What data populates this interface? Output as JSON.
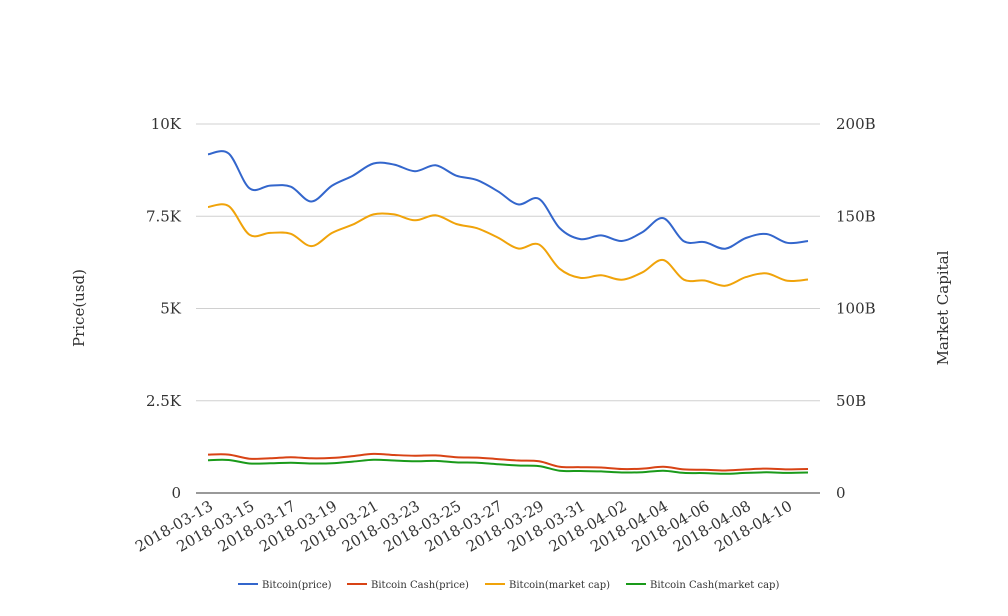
{
  "colors": {
    "btc_price": "#3366cc",
    "bch_price": "#d84315",
    "btc_cap": "#f0a30a",
    "bch_cap": "#1a9a1a",
    "grid": "#d0d0d0",
    "text": "#333333"
  },
  "chart_data": {
    "type": "line",
    "title": "",
    "left_axis": {
      "label": "Price(usd)",
      "ylim": [
        0,
        10000
      ],
      "ticks": [
        "0",
        "2.5K",
        "5K",
        "7.5K",
        "10K"
      ]
    },
    "right_axis": {
      "label": "Market Capital",
      "ylim": [
        0,
        200000000000
      ],
      "ticks": [
        "0",
        "50B",
        "100B",
        "150B",
        "200B"
      ]
    },
    "x": [
      "2018-03-13",
      "2018-03-14",
      "2018-03-15",
      "2018-03-16",
      "2018-03-17",
      "2018-03-18",
      "2018-03-19",
      "2018-03-20",
      "2018-03-21",
      "2018-03-22",
      "2018-03-23",
      "2018-03-24",
      "2018-03-25",
      "2018-03-26",
      "2018-03-27",
      "2018-03-28",
      "2018-03-29",
      "2018-03-30",
      "2018-03-31",
      "2018-04-01",
      "2018-04-02",
      "2018-04-03",
      "2018-04-04",
      "2018-04-05",
      "2018-04-06",
      "2018-04-07",
      "2018-04-08",
      "2018-04-09",
      "2018-04-10",
      "2018-04-11"
    ],
    "x_tick_labels": [
      "2018-03-13",
      "2018-03-15",
      "2018-03-17",
      "2018-03-19",
      "2018-03-21",
      "2018-03-23",
      "2018-03-25",
      "2018-03-27",
      "2018-03-29",
      "2018-03-31",
      "2018-04-02",
      "2018-04-04",
      "2018-04-06",
      "2018-04-08",
      "2018-04-10"
    ],
    "grid": true,
    "legend_position": "bottom",
    "series": [
      {
        "name": "Bitcoin(price)",
        "axis": "left",
        "color": "#3366cc",
        "values": [
          9180,
          9200,
          8260,
          8330,
          8300,
          7900,
          8330,
          8600,
          8930,
          8900,
          8720,
          8880,
          8600,
          8480,
          8180,
          7820,
          7970,
          7180,
          6880,
          6980,
          6830,
          7070,
          7450,
          6820,
          6800,
          6620,
          6910,
          7020,
          6780,
          6830
        ]
      },
      {
        "name": "Bitcoin Cash(price)",
        "axis": "left",
        "color": "#d84315",
        "values": [
          1040,
          1040,
          930,
          940,
          970,
          940,
          950,
          1000,
          1060,
          1030,
          1010,
          1020,
          970,
          960,
          920,
          880,
          860,
          710,
          700,
          690,
          650,
          660,
          710,
          640,
          630,
          610,
          640,
          660,
          640,
          650
        ]
      },
      {
        "name": "Bitcoin(market cap)",
        "axis": "right",
        "color": "#f0a30a",
        "values": [
          155000000000,
          155500000000,
          140000000000,
          141000000000,
          140500000000,
          133800000000,
          141000000000,
          145500000000,
          151000000000,
          151000000000,
          147800000000,
          150500000000,
          145800000000,
          143500000000,
          138500000000,
          132500000000,
          134700000000,
          121500000000,
          116600000000,
          118000000000,
          115600000000,
          119600000000,
          126300000000,
          115600000000,
          115200000000,
          112300000000,
          117000000000,
          119000000000,
          115000000000,
          115700000000
        ]
      },
      {
        "name": "Bitcoin Cash(market cap)",
        "axis": "right",
        "color": "#1a9a1a",
        "values": [
          17800000000,
          17900000000,
          16000000000,
          16100000000,
          16400000000,
          16000000000,
          16100000000,
          17000000000,
          18000000000,
          17600000000,
          17200000000,
          17400000000,
          16600000000,
          16400000000,
          15600000000,
          14900000000,
          14600000000,
          12100000000,
          11900000000,
          11700000000,
          11100000000,
          11300000000,
          12100000000,
          10900000000,
          10800000000,
          10400000000,
          10900000000,
          11200000000,
          10900000000,
          11100000000
        ]
      }
    ]
  }
}
